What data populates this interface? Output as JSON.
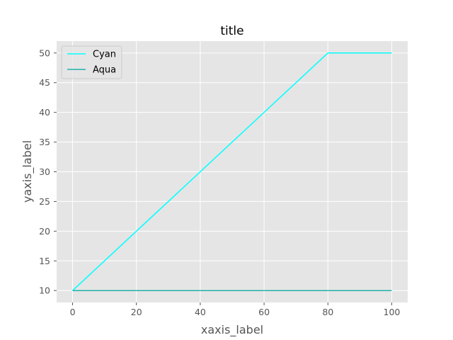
{
  "chart_data": {
    "type": "line",
    "title": "title",
    "xlabel": "xaxis_label",
    "ylabel": "yaxis_label",
    "xlim": [
      -5,
      105
    ],
    "ylim": [
      8,
      52
    ],
    "xticks": [
      0,
      20,
      40,
      60,
      80,
      100
    ],
    "yticks": [
      10,
      15,
      20,
      25,
      30,
      35,
      40,
      45,
      50
    ],
    "grid": true,
    "legend_position": "upper-left",
    "colors": {
      "plot_background": "#e5e5e5",
      "grid": "#ffffff",
      "tick_label": "#555555"
    },
    "series": [
      {
        "name": "Cyan",
        "color": "#00ffff",
        "x": [
          0,
          80,
          100
        ],
        "y": [
          10,
          50,
          50
        ]
      },
      {
        "name": "Aqua",
        "color": "#20b2aa",
        "x": [
          0,
          100
        ],
        "y": [
          10,
          10
        ]
      }
    ]
  }
}
